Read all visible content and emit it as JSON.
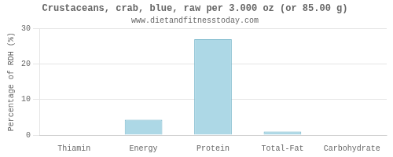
{
  "chart_data": {
    "type": "bar",
    "title": "Crustaceans, crab, blue, raw per 3.000 oz (or 85.00 g)",
    "subtitle": "www.dietandfitnesstoday.com",
    "categories": [
      "Thiamin",
      "Energy",
      "Protein",
      "Total-Fat",
      "Carbohydrate"
    ],
    "values": [
      0.0,
      4.3,
      27.0,
      1.0,
      0.0
    ],
    "color": "#add8e6",
    "ylabel": "Percentage of RDH (%)",
    "ylim": [
      0,
      30
    ],
    "yticks": [
      0,
      10,
      20,
      30
    ],
    "grid": true
  }
}
